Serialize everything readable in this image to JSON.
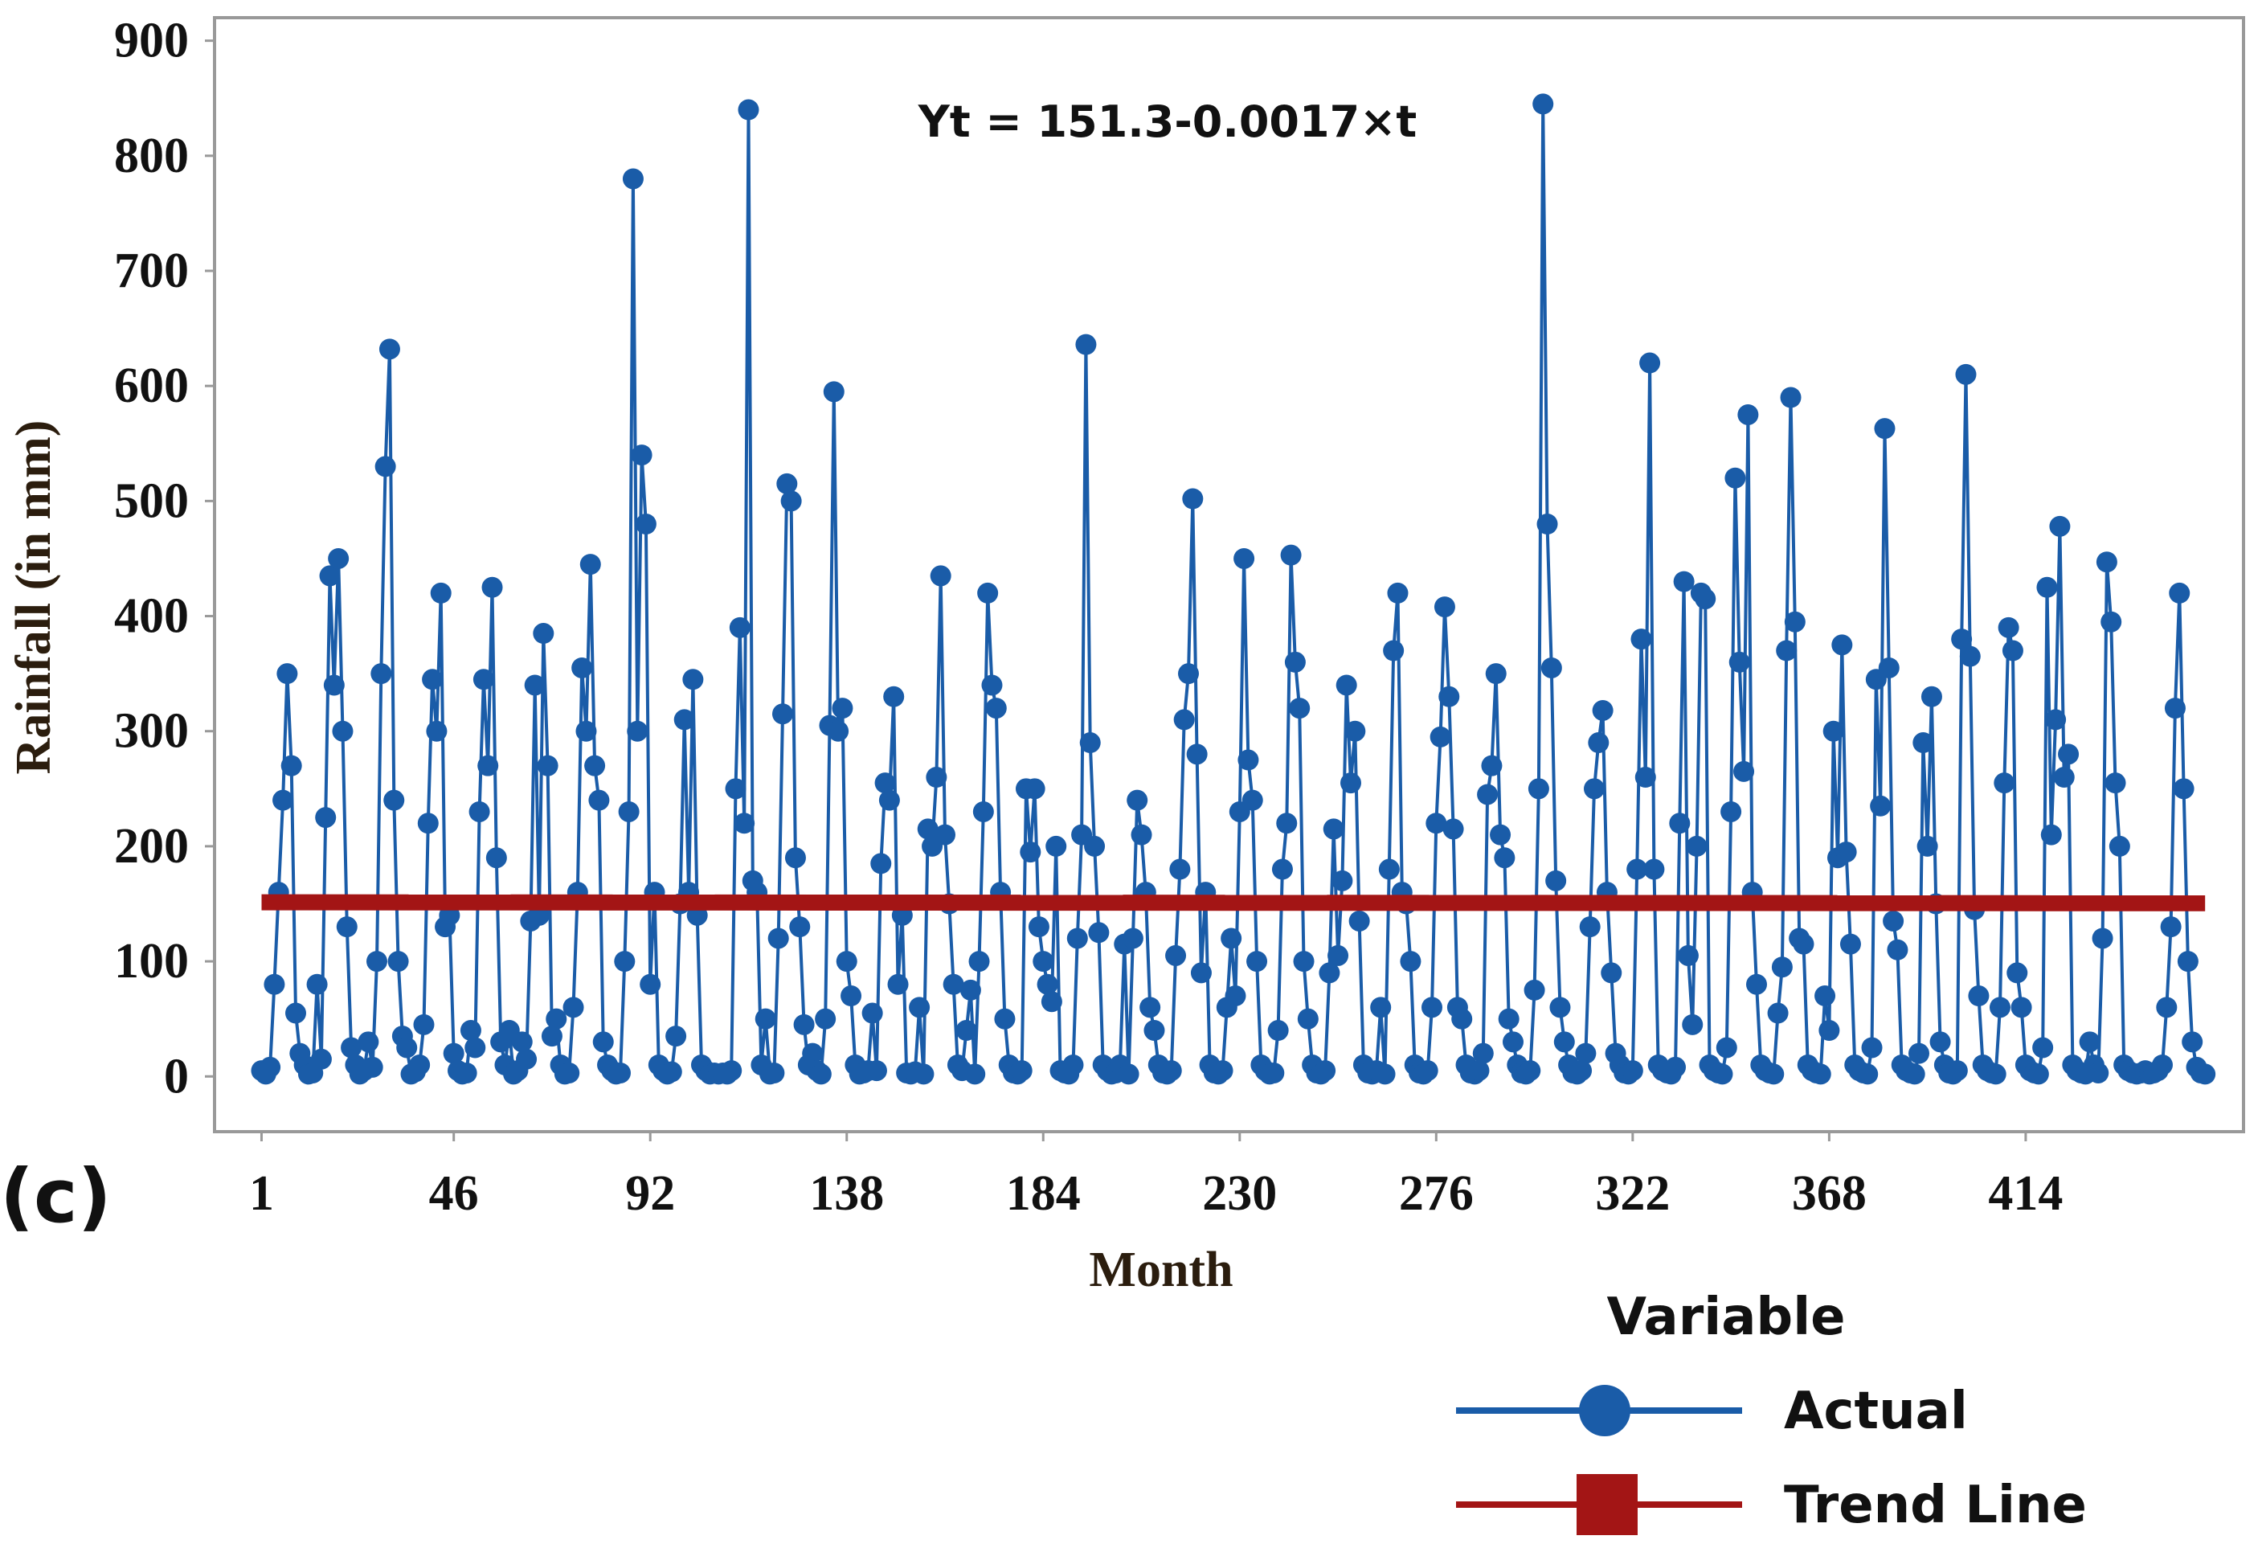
{
  "chart_data": {
    "type": "line",
    "panel_label": "(c)",
    "annotation": "Yt = 151.3-0.0017×t",
    "xlabel": "Month",
    "ylabel": "Rainfall (in mm)",
    "legend_title": "Variable",
    "xlim": [
      -10,
      465
    ],
    "ylim": [
      -48,
      920
    ],
    "xticks": [
      1,
      46,
      92,
      138,
      184,
      230,
      276,
      322,
      368,
      414
    ],
    "yticks": [
      0,
      100,
      200,
      300,
      400,
      500,
      600,
      700,
      800,
      900
    ],
    "grid": false,
    "series": [
      {
        "name": "Actual",
        "color": "#1a5ca8",
        "marker": true,
        "x": [
          1,
          2,
          3,
          4,
          5,
          6,
          7,
          8,
          9,
          10,
          11,
          12,
          13,
          14,
          15,
          16,
          17,
          18,
          19,
          20,
          21,
          22,
          23,
          24,
          25,
          26,
          27,
          28,
          29,
          30,
          31,
          32,
          33,
          34,
          35,
          36,
          37,
          38,
          39,
          40,
          41,
          42,
          43,
          44,
          45,
          46,
          47,
          48,
          49,
          50,
          51,
          52,
          53,
          54,
          55,
          56,
          57,
          58,
          59,
          60,
          61,
          62,
          63,
          64,
          65,
          66,
          67,
          68,
          69,
          70,
          71,
          72,
          73,
          74,
          75,
          76,
          77,
          78,
          79,
          80,
          81,
          82,
          83,
          84,
          85,
          86,
          87,
          88,
          89,
          90,
          91,
          92,
          93,
          94,
          95,
          96,
          97,
          98,
          99,
          100,
          101,
          102,
          103,
          104,
          105,
          106,
          107,
          108,
          109,
          110,
          111,
          112,
          113,
          114,
          115,
          116,
          117,
          118,
          119,
          120,
          121,
          122,
          123,
          124,
          125,
          126,
          127,
          128,
          129,
          130,
          131,
          132,
          133,
          134,
          135,
          136,
          137,
          138,
          139,
          140,
          141,
          142,
          143,
          144,
          145,
          146,
          147,
          148,
          149,
          150,
          151,
          152,
          153,
          154,
          155,
          156,
          157,
          158,
          159,
          160,
          161,
          162,
          163,
          164,
          165,
          166,
          167,
          168,
          169,
          170,
          171,
          172,
          173,
          174,
          175,
          176,
          177,
          178,
          179,
          180,
          181,
          182,
          183,
          184,
          185,
          186,
          187,
          188,
          189,
          190,
          191,
          192,
          193,
          194,
          195,
          196,
          197,
          198,
          199,
          200,
          201,
          202,
          203,
          204,
          205,
          206,
          207,
          208,
          209,
          210,
          211,
          212,
          213,
          214,
          215,
          216,
          217,
          218,
          219,
          220,
          221,
          222,
          223,
          224,
          225,
          226,
          227,
          228,
          229,
          230,
          231,
          232,
          233,
          234,
          235,
          236,
          237,
          238,
          239,
          240,
          241,
          242,
          243,
          244,
          245,
          246,
          247,
          248,
          249,
          250,
          251,
          252,
          253,
          254,
          255,
          256,
          257,
          258,
          259,
          260,
          261,
          262,
          263,
          264,
          265,
          266,
          267,
          268,
          269,
          270,
          271,
          272,
          273,
          274,
          275,
          276,
          277,
          278,
          279,
          280,
          281,
          282,
          283,
          284,
          285,
          286,
          287,
          288,
          289,
          290,
          291,
          292,
          293,
          294,
          295,
          296,
          297,
          298,
          299,
          300,
          301,
          302,
          303,
          304,
          305,
          306,
          307,
          308,
          309,
          310,
          311,
          312,
          313,
          314,
          315,
          316,
          317,
          318,
          319,
          320,
          321,
          322,
          323,
          324,
          325,
          326,
          327,
          328,
          329,
          330,
          331,
          332,
          333,
          334,
          335,
          336,
          337,
          338,
          339,
          340,
          341,
          342,
          343,
          344,
          345,
          346,
          347,
          348,
          349,
          350,
          351,
          352,
          353,
          354,
          355,
          356,
          357,
          358,
          359,
          360,
          361,
          362,
          363,
          364,
          365,
          366,
          367,
          368,
          369,
          370,
          371,
          372,
          373,
          374,
          375,
          376,
          377,
          378,
          379,
          380,
          381,
          382,
          383,
          384,
          385,
          386,
          387,
          388,
          389,
          390,
          391,
          392,
          393,
          394,
          395,
          396,
          397,
          398,
          399,
          400,
          401,
          402,
          403,
          404,
          405,
          406,
          407,
          408,
          409,
          410,
          411,
          412,
          413,
          414,
          415,
          416,
          417,
          418,
          419,
          420,
          421,
          422,
          423,
          424,
          425,
          426,
          427,
          428,
          429,
          430,
          431,
          432,
          433,
          434,
          435,
          436,
          437,
          438,
          439,
          440,
          441,
          442,
          443,
          444,
          445,
          446,
          447,
          448,
          449,
          450,
          451,
          452,
          453,
          454,
          455,
          456
        ],
        "values": [
          5,
          2,
          8,
          80,
          160,
          240,
          350,
          270,
          55,
          20,
          10,
          2,
          3,
          80,
          15,
          225,
          435,
          340,
          450,
          300,
          130,
          25,
          10,
          2,
          5,
          30,
          8,
          100,
          350,
          530,
          632,
          240,
          100,
          35,
          25,
          2,
          4,
          10,
          45,
          220,
          345,
          300,
          420,
          130,
          140,
          20,
          5,
          2,
          3,
          40,
          25,
          230,
          345,
          270,
          425,
          190,
          30,
          10,
          40,
          2,
          5,
          30,
          15,
          135,
          340,
          140,
          385,
          270,
          35,
          50,
          10,
          2,
          3,
          60,
          160,
          355,
          300,
          445,
          270,
          240,
          30,
          10,
          5,
          2,
          3,
          100,
          230,
          780,
          300,
          540,
          480,
          80,
          160,
          10,
          5,
          2,
          4,
          35,
          150,
          310,
          160,
          345,
          140,
          10,
          5,
          2,
          3,
          2,
          3,
          2,
          5,
          250,
          390,
          220,
          840,
          170,
          160,
          10,
          50,
          2,
          3,
          120,
          315,
          515,
          500,
          190,
          130,
          45,
          10,
          20,
          5,
          2,
          50,
          305,
          595,
          300,
          320,
          100,
          70,
          10,
          2,
          3,
          5,
          55,
          5,
          185,
          255,
          240,
          330,
          80,
          140,
          3,
          2,
          4,
          60,
          2,
          215,
          200,
          260,
          435,
          210,
          150,
          80,
          10,
          5,
          40,
          75,
          2,
          100,
          230,
          420,
          340,
          320,
          160,
          50,
          10,
          3,
          2,
          5,
          250,
          195,
          250,
          130,
          100,
          80,
          65,
          200,
          5,
          3,
          2,
          10,
          120,
          210,
          636,
          290,
          200,
          125,
          10,
          5,
          2,
          3,
          10,
          115,
          2,
          120,
          240,
          210,
          160,
          60,
          40,
          10,
          3,
          2,
          5,
          105,
          180,
          310,
          350,
          502,
          280,
          90,
          160,
          10,
          3,
          2,
          5,
          60,
          120,
          70,
          230,
          450,
          275,
          240,
          100,
          10,
          5,
          2,
          3,
          40,
          180,
          220,
          453,
          360,
          320,
          100,
          50,
          10,
          3,
          2,
          5,
          90,
          215,
          105,
          170,
          340,
          255,
          300,
          135,
          10,
          3,
          2,
          5,
          60,
          2,
          180,
          370,
          420,
          160,
          150,
          100,
          10,
          3,
          2,
          5,
          60,
          220,
          295,
          408,
          330,
          215,
          60,
          50,
          10,
          3,
          2,
          5,
          20,
          245,
          270,
          350,
          210,
          190,
          50,
          30,
          10,
          3,
          2,
          5,
          75,
          250,
          845,
          480,
          355,
          170,
          60,
          30,
          10,
          3,
          2,
          5,
          20,
          130,
          250,
          290,
          318,
          160,
          90,
          20,
          10,
          3,
          2,
          5,
          180,
          380,
          260,
          620,
          180,
          10,
          5,
          3,
          2,
          8,
          220,
          430,
          105,
          45,
          200,
          420,
          415,
          10,
          5,
          3,
          2,
          25,
          230,
          520,
          360,
          265,
          575,
          160,
          80,
          10,
          5,
          3,
          2,
          55,
          95,
          370,
          590,
          395,
          120,
          115,
          10,
          5,
          3,
          2,
          70,
          40,
          300,
          190,
          375,
          195,
          115,
          10,
          5,
          3,
          2,
          25,
          345,
          235,
          563,
          355,
          135,
          110,
          10,
          5,
          3,
          2,
          20,
          290,
          200,
          330,
          150,
          30,
          10,
          3,
          2,
          5,
          380,
          610,
          365,
          145,
          70,
          10,
          5,
          3,
          2,
          60,
          255,
          390,
          370,
          90,
          60,
          10,
          5,
          3,
          2,
          25,
          425,
          210,
          310,
          478,
          260,
          280,
          10,
          5,
          3,
          2,
          30,
          10,
          3,
          120,
          447,
          395,
          255,
          200,
          10,
          5,
          3,
          2,
          3,
          5,
          2,
          3,
          5,
          10,
          60,
          130,
          320,
          420,
          250,
          100,
          30,
          8,
          3,
          2
        ]
      },
      {
        "name": "Trend Line",
        "color": "#a31515",
        "marker": false,
        "x": [
          1,
          456
        ],
        "values": [
          151.3,
          150.5
        ]
      }
    ]
  }
}
